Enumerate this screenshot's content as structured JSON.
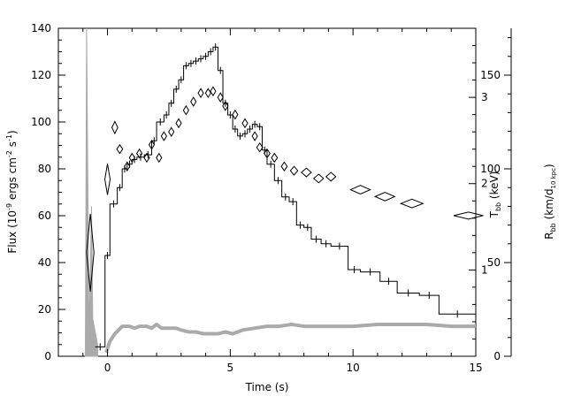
{
  "chart_data": {
    "type": "line",
    "xlabel": "Time (s)",
    "xlim": [
      -2,
      15
    ],
    "x_ticks": [
      0,
      5,
      10,
      15
    ],
    "y_axes": {
      "flux": {
        "label": "Flux (10",
        "label_parts": [
          "Flux (10",
          "-9",
          " ergs cm",
          "-2",
          " s",
          "-1",
          ")"
        ],
        "ylim": [
          0,
          140
        ],
        "ticks": [
          0,
          20,
          40,
          60,
          80,
          100,
          120,
          140
        ]
      },
      "kT": {
        "label_parts": [
          "T",
          "bb",
          " (keV)"
        ],
        "ylim": [
          0,
          3.8
        ],
        "ticks": [
          1,
          2,
          3
        ]
      },
      "radius": {
        "label_parts": [
          "R",
          "bb",
          " (km/d",
          "10 kpc",
          ")"
        ],
        "ylim": [
          0,
          175
        ],
        "ticks": [
          0,
          50,
          100,
          150
        ]
      }
    },
    "series": [
      {
        "key": "flux",
        "style": "histogram-with-errorbars",
        "color": "#000000",
        "bins": [
          [
            -0.5,
            -0.1,
            4
          ],
          [
            -0.1,
            0.1,
            43
          ],
          [
            0.1,
            0.4,
            65
          ],
          [
            0.4,
            0.6,
            72
          ],
          [
            0.6,
            0.8,
            80
          ],
          [
            0.8,
            1.0,
            82
          ],
          [
            1.0,
            1.2,
            84
          ],
          [
            1.2,
            1.5,
            85
          ],
          [
            1.5,
            1.8,
            86
          ],
          [
            1.8,
            2.0,
            92
          ],
          [
            2.0,
            2.3,
            100
          ],
          [
            2.3,
            2.5,
            103
          ],
          [
            2.5,
            2.7,
            108
          ],
          [
            2.7,
            2.9,
            114
          ],
          [
            2.9,
            3.1,
            118
          ],
          [
            3.1,
            3.3,
            124
          ],
          [
            3.3,
            3.5,
            125
          ],
          [
            3.5,
            3.7,
            126
          ],
          [
            3.7,
            3.9,
            127
          ],
          [
            3.9,
            4.1,
            128
          ],
          [
            4.1,
            4.3,
            130
          ],
          [
            4.3,
            4.5,
            132
          ],
          [
            4.5,
            4.7,
            122
          ],
          [
            4.7,
            4.9,
            108
          ],
          [
            4.9,
            5.1,
            103
          ],
          [
            5.1,
            5.3,
            97
          ],
          [
            5.3,
            5.5,
            94
          ],
          [
            5.5,
            5.7,
            95
          ],
          [
            5.7,
            5.9,
            97
          ],
          [
            5.9,
            6.1,
            99
          ],
          [
            6.1,
            6.3,
            98
          ],
          [
            6.3,
            6.5,
            88
          ],
          [
            6.5,
            6.8,
            82
          ],
          [
            6.8,
            7.1,
            75
          ],
          [
            7.1,
            7.4,
            68
          ],
          [
            7.4,
            7.7,
            66
          ],
          [
            7.7,
            8.0,
            56
          ],
          [
            8.0,
            8.3,
            55
          ],
          [
            8.3,
            8.7,
            50
          ],
          [
            8.7,
            9.1,
            48
          ],
          [
            9.1,
            9.8,
            47
          ],
          [
            9.8,
            10.3,
            37
          ],
          [
            10.3,
            11.1,
            36
          ],
          [
            11.1,
            11.8,
            32
          ],
          [
            11.8,
            12.7,
            27
          ],
          [
            12.7,
            13.5,
            26
          ],
          [
            13.5,
            15.0,
            18
          ]
        ]
      },
      {
        "key": "kT",
        "style": "open-diamonds",
        "color": "#000000",
        "points": [
          [
            -0.7,
            1.2,
            0.15,
            0.45
          ],
          [
            0.0,
            2.05,
            0.1,
            0.18
          ],
          [
            0.3,
            2.65,
            0.12,
            0.07
          ],
          [
            0.5,
            2.4,
            0.12,
            0.05
          ],
          [
            0.8,
            2.2,
            0.1,
            0.05
          ],
          [
            1.0,
            2.3,
            0.1,
            0.05
          ],
          [
            1.3,
            2.35,
            0.1,
            0.05
          ],
          [
            1.6,
            2.3,
            0.1,
            0.05
          ],
          [
            1.8,
            2.45,
            0.1,
            0.05
          ],
          [
            2.1,
            2.3,
            0.1,
            0.05
          ],
          [
            2.3,
            2.55,
            0.1,
            0.05
          ],
          [
            2.6,
            2.6,
            0.1,
            0.05
          ],
          [
            2.9,
            2.7,
            0.1,
            0.05
          ],
          [
            3.2,
            2.85,
            0.1,
            0.05
          ],
          [
            3.5,
            2.95,
            0.1,
            0.05
          ],
          [
            3.8,
            3.05,
            0.1,
            0.05
          ],
          [
            4.1,
            3.05,
            0.1,
            0.05
          ],
          [
            4.3,
            3.07,
            0.1,
            0.05
          ],
          [
            4.6,
            3.0,
            0.1,
            0.05
          ],
          [
            4.8,
            2.9,
            0.1,
            0.05
          ],
          [
            5.2,
            2.8,
            0.1,
            0.05
          ],
          [
            5.6,
            2.7,
            0.1,
            0.05
          ],
          [
            6.0,
            2.55,
            0.1,
            0.05
          ],
          [
            6.2,
            2.42,
            0.12,
            0.05
          ],
          [
            6.5,
            2.35,
            0.12,
            0.05
          ],
          [
            6.8,
            2.3,
            0.12,
            0.05
          ],
          [
            7.2,
            2.2,
            0.12,
            0.05
          ],
          [
            7.6,
            2.15,
            0.15,
            0.05
          ],
          [
            8.1,
            2.13,
            0.2,
            0.05
          ],
          [
            8.6,
            2.06,
            0.2,
            0.05
          ],
          [
            9.1,
            2.08,
            0.2,
            0.05
          ],
          [
            10.3,
            1.93,
            0.4,
            0.05
          ],
          [
            11.3,
            1.85,
            0.4,
            0.05
          ],
          [
            12.4,
            1.77,
            0.45,
            0.05
          ],
          [
            14.7,
            1.63,
            0.6,
            0.03
          ]
        ]
      },
      {
        "key": "radius",
        "style": "thick-grey-band",
        "color": "#aaaaaa",
        "points": [
          [
            -0.05,
            2
          ],
          [
            0.1,
            8
          ],
          [
            0.3,
            12
          ],
          [
            0.6,
            16
          ],
          [
            0.9,
            16
          ],
          [
            1.1,
            15
          ],
          [
            1.3,
            16
          ],
          [
            1.6,
            16
          ],
          [
            1.8,
            15
          ],
          [
            2.0,
            17
          ],
          [
            2.2,
            15
          ],
          [
            2.5,
            15
          ],
          [
            2.8,
            15
          ],
          [
            3.0,
            14
          ],
          [
            3.3,
            13
          ],
          [
            3.6,
            13
          ],
          [
            3.9,
            12
          ],
          [
            4.2,
            12
          ],
          [
            4.5,
            12
          ],
          [
            4.8,
            13
          ],
          [
            5.1,
            12
          ],
          [
            5.5,
            14
          ],
          [
            6.0,
            15
          ],
          [
            6.5,
            16
          ],
          [
            7.0,
            16
          ],
          [
            7.5,
            17
          ],
          [
            8.0,
            16
          ],
          [
            8.5,
            16
          ],
          [
            9.0,
            16
          ],
          [
            10.0,
            16
          ],
          [
            11.0,
            17
          ],
          [
            12.0,
            17
          ],
          [
            13.0,
            17
          ],
          [
            14.0,
            16
          ],
          [
            15.0,
            16
          ]
        ],
        "early_spike": [
          [
            -0.9,
            5
          ],
          [
            -0.85,
            175
          ],
          [
            -0.75,
            10
          ],
          [
            -0.65,
            80
          ],
          [
            -0.6,
            20
          ],
          [
            -0.4,
            6
          ]
        ]
      }
    ]
  }
}
